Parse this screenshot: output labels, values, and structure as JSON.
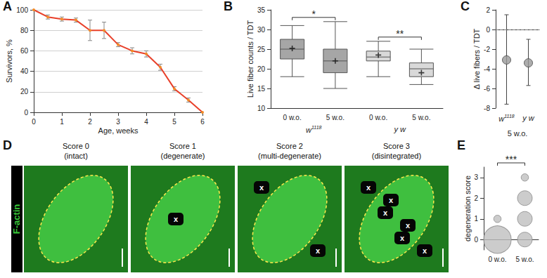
{
  "chart_data": [
    {
      "panel": "A",
      "type": "line",
      "x": [
        0,
        0.5,
        1,
        1.5,
        2,
        2.5,
        3,
        3.5,
        4,
        4.5,
        5,
        5.5,
        6
      ],
      "values": [
        100,
        93,
        91,
        90,
        80,
        80,
        66,
        60,
        57,
        44,
        23,
        12,
        0
      ],
      "errors": [
        0,
        2,
        2,
        2,
        10,
        8,
        2,
        3,
        3,
        3,
        2,
        2,
        0
      ],
      "xlabel": "Age, weeks",
      "ylabel": "Survivors, %",
      "xlim": [
        0,
        6
      ],
      "xticks": [
        0,
        1,
        2,
        3,
        4,
        5,
        6
      ],
      "ylim": [
        0,
        100
      ],
      "yticks": [
        0,
        20,
        40,
        60,
        80,
        100
      ],
      "grid": true,
      "color": "#e8402a",
      "marker": "circle"
    },
    {
      "panel": "B",
      "type": "boxplot",
      "categories": [
        "0 w.o.",
        "5 w.o.",
        "0 w.o.",
        "5 w.o."
      ],
      "groups": [
        {
          "name": "w",
          "sup": "1118"
        },
        {
          "name": "y w"
        }
      ],
      "boxes": [
        {
          "min": 18,
          "q1": 22.5,
          "median": 25,
          "q3": 27.5,
          "max": 31,
          "mean": 25.2,
          "color": "#a6a6a6"
        },
        {
          "min": 15,
          "q1": 19,
          "median": 22,
          "q3": 25,
          "max": 32,
          "mean": 22,
          "color": "#a6a6a6"
        },
        {
          "min": 18,
          "q1": 22,
          "median": 23,
          "q3": 24.5,
          "max": 27,
          "mean": 23.5,
          "color": "#d9d9d9"
        },
        {
          "min": 16,
          "q1": 18,
          "median": 20,
          "q3": 21.5,
          "max": 25,
          "mean": 19,
          "color": "#d9d9d9"
        }
      ],
      "significance": [
        {
          "from": 0,
          "to": 1,
          "label": "*"
        },
        {
          "from": 2,
          "to": 3,
          "label": "**"
        }
      ],
      "ylabel": "Live fiber counts / TDT",
      "ylim": [
        10,
        35
      ],
      "yticks": [
        10,
        15,
        20,
        25,
        30,
        35
      ]
    },
    {
      "panel": "C",
      "type": "scatter",
      "categories": [
        {
          "name": "w",
          "sup": "1118"
        },
        {
          "name": "y w"
        }
      ],
      "values": [
        -3.1,
        -3.4
      ],
      "low": [
        -7.6,
        -5.7
      ],
      "high": [
        1.5,
        -1.0
      ],
      "xlabel": "5 w.o.",
      "ylabel": "Δ live fibers / TDT",
      "ylim": [
        -8,
        2
      ],
      "yticks": [
        -8,
        -6,
        -4,
        -2,
        0,
        2
      ],
      "hline": 0,
      "color": "#999999",
      "marker": "circle"
    },
    {
      "panel": "D",
      "type": "micrograph",
      "stain": "F-actin",
      "images": [
        {
          "title": "Score 0",
          "subtitle": "(intact)",
          "marks": []
        },
        {
          "title": "Score 1",
          "subtitle": "(degenerate)",
          "marks": [
            "x"
          ]
        },
        {
          "title": "Score 2",
          "subtitle": "(multi-degenerate)",
          "marks": [
            "x",
            "x"
          ]
        },
        {
          "title": "Score 3",
          "subtitle": "(disintegrated)",
          "marks": [
            "x",
            "x",
            "x",
            "x",
            "x",
            "x"
          ]
        }
      ]
    },
    {
      "panel": "E",
      "type": "bubble",
      "categories": [
        "0 w.o.",
        "5 w.o."
      ],
      "points": [
        {
          "x": 0,
          "y": 0,
          "count": 14
        },
        {
          "x": 0,
          "y": 1,
          "count": 1
        },
        {
          "x": 1,
          "y": 0,
          "count": 4
        },
        {
          "x": 1,
          "y": 1,
          "count": 4
        },
        {
          "x": 1,
          "y": 2,
          "count": 4
        },
        {
          "x": 1,
          "y": 3,
          "count": 1
        }
      ],
      "significance": [
        {
          "from": 0,
          "to": 1,
          "label": "***"
        }
      ],
      "ylabel": "degeneration score",
      "ylim": [
        -0.5,
        3.5
      ],
      "yticks": [
        0,
        1,
        2,
        3
      ],
      "color": "#bfbfbf"
    }
  ]
}
